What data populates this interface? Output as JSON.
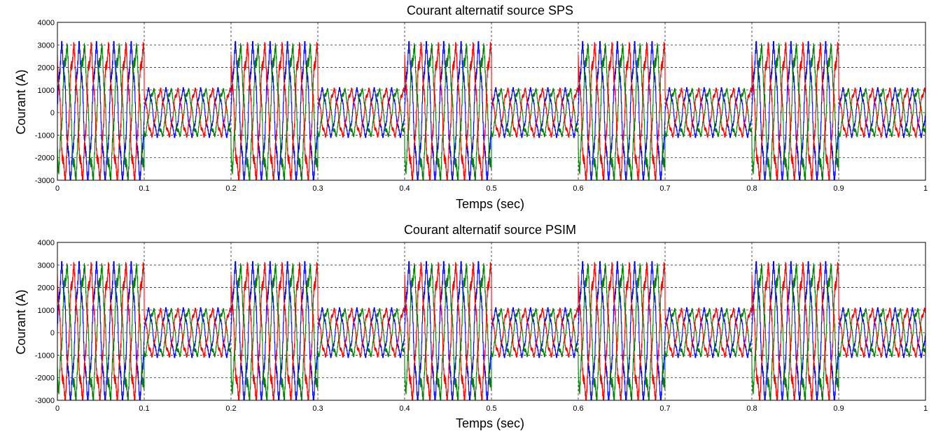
{
  "chart_data": [
    {
      "type": "line",
      "title": "Courant alternatif source SPS",
      "xlabel": "Temps (sec)",
      "ylabel": "Courant (A)",
      "xlim": [
        0,
        1
      ],
      "ylim": [
        -3000,
        4000
      ],
      "x_ticks": [
        "0",
        "0.1",
        "0.2",
        "0.3",
        "0.4",
        "0.5",
        "0.6",
        "0.7",
        "0.8",
        "0.9",
        "1"
      ],
      "y_ticks": [
        "4000",
        "3000",
        "2000",
        "1000",
        "0",
        "-1000",
        "-2000",
        "-3000"
      ],
      "grid": true,
      "waveform": {
        "phases": 3,
        "frequency_hz": 50,
        "high_amplitude_A": 2700,
        "low_amplitude_A": 950,
        "high_intervals_s": [
          [
            0,
            0.1
          ],
          [
            0.2,
            0.3
          ],
          [
            0.4,
            0.5
          ],
          [
            0.6,
            0.7
          ],
          [
            0.8,
            0.9
          ]
        ],
        "low_intervals_s": [
          [
            0.1,
            0.2
          ],
          [
            0.3,
            0.4
          ],
          [
            0.5,
            0.6
          ],
          [
            0.7,
            0.8
          ],
          [
            0.9,
            1.0
          ]
        ],
        "transient_peak_A": 3500
      },
      "series": [
        {
          "color": "#0000ff"
        },
        {
          "color": "#008000"
        },
        {
          "color": "#ff0000"
        }
      ]
    },
    {
      "type": "line",
      "title": "Courant alternatif source PSIM",
      "xlabel": "Temps (sec)",
      "ylabel": "Courant (A)",
      "xlim": [
        0,
        1
      ],
      "ylim": [
        -3000,
        4000
      ],
      "x_ticks": [
        "0",
        "0.1",
        "0.2",
        "0.3",
        "0.4",
        "0.5",
        "0.6",
        "0.7",
        "0.8",
        "0.9",
        "1"
      ],
      "y_ticks": [
        "4000",
        "3000",
        "2000",
        "1000",
        "0",
        "-1000",
        "-2000",
        "-3000"
      ],
      "grid": true,
      "waveform": {
        "phases": 3,
        "frequency_hz": 50,
        "high_amplitude_A": 2700,
        "low_amplitude_A": 950,
        "high_intervals_s": [
          [
            0,
            0.1
          ],
          [
            0.2,
            0.3
          ],
          [
            0.4,
            0.5
          ],
          [
            0.6,
            0.7
          ],
          [
            0.8,
            0.9
          ]
        ],
        "low_intervals_s": [
          [
            0.1,
            0.2
          ],
          [
            0.3,
            0.4
          ],
          [
            0.5,
            0.6
          ],
          [
            0.7,
            0.8
          ],
          [
            0.9,
            1.0
          ]
        ],
        "transient_peak_A": 3500
      },
      "series": [
        {
          "color": "#0000ff"
        },
        {
          "color": "#008000"
        },
        {
          "color": "#ff0000"
        }
      ]
    }
  ]
}
